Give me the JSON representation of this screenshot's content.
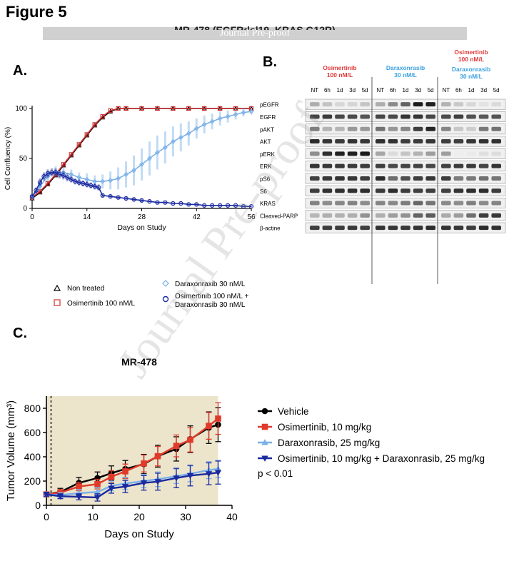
{
  "figure": {
    "title": "Figure 5",
    "banner_title": "MR-478 (EGFRdel19, KRAS G12R)",
    "banner": "Journal Pre-proof",
    "watermark": "Journal Pre-proof"
  },
  "panel_a": {
    "label": "A.",
    "legend": [
      "Non treated",
      "Osimertinib 100 nM/L",
      "Daraxonraxib 30 nM/L",
      "Osimertinib 100 nM/L +\nDaraxonrasib 30 nM/L"
    ]
  },
  "panel_b": {
    "label": "B.",
    "groups": [
      {
        "name": "Osimertinib\n100 nM/L",
        "color": "#e03a3a"
      },
      {
        "name": "Daraxonrasib\n30 nM/L",
        "color": "#3aa0e0"
      },
      {
        "name_top": "Osimertinib\n100 nM/L",
        "name_bottom": "Daraxonrasib\n30 nM/L",
        "color_top": "#e03a3a",
        "color_bottom": "#3aa0e0"
      }
    ],
    "lanes": [
      "NT",
      "6h",
      "1d",
      "3d",
      "5d",
      "NT",
      "6h",
      "1d",
      "3d",
      "5d",
      "NT",
      "6h",
      "1d",
      "3d",
      "5d"
    ],
    "rows": [
      "pEGFR",
      "EGFR",
      "pAKT",
      "AKT",
      "pERK",
      "ERK",
      "pS6",
      "S6",
      "KRAS",
      "Cleaved-PARP",
      "β-actine"
    ]
  },
  "panel_c": {
    "label": "C.",
    "legend_pvalue": "p < 0.01"
  },
  "chart_data": [
    {
      "type": "line",
      "id": "panel-a-confluency",
      "xlabel": "Days on Study",
      "ylabel": "Cell Confluency (%)",
      "xlim": [
        0,
        56
      ],
      "ylim": [
        0,
        100
      ],
      "xticks": [
        0,
        14,
        28,
        42,
        56
      ],
      "yticks": [
        0,
        50,
        100
      ],
      "series": [
        {
          "name": "Non treated",
          "color": "#000000",
          "marker": "triangle",
          "x": [
            0,
            2,
            4,
            6,
            8,
            10,
            12,
            14,
            16,
            18,
            20,
            22,
            24,
            28,
            32,
            36,
            40,
            44,
            48,
            52,
            56
          ],
          "y": [
            10,
            16,
            24,
            33,
            43,
            53,
            63,
            73,
            83,
            91,
            97,
            100,
            100,
            100,
            100,
            100,
            100,
            100,
            100,
            100,
            100
          ]
        },
        {
          "name": "Osimertinib 100 nM/L",
          "color": "#d03030",
          "marker": "square",
          "x": [
            0,
            2,
            4,
            6,
            8,
            10,
            12,
            14,
            16,
            18,
            20,
            22,
            24,
            28,
            32,
            36,
            40,
            44,
            48,
            52,
            56
          ],
          "y": [
            11,
            17,
            25,
            34,
            44,
            54,
            64,
            74,
            84,
            92,
            98,
            100,
            100,
            100,
            100,
            100,
            100,
            100,
            100,
            100,
            100
          ]
        },
        {
          "name": "Daraxonraxib 30 nM/L",
          "color": "#7ab0e8",
          "marker": "diamond",
          "x": [
            0,
            2,
            4,
            6,
            8,
            10,
            12,
            14,
            16,
            18,
            20,
            22,
            24,
            26,
            28,
            30,
            32,
            34,
            36,
            38,
            40,
            42,
            44,
            46,
            48,
            50,
            52,
            54,
            56
          ],
          "y": [
            11,
            22,
            32,
            37,
            36,
            34,
            31,
            29,
            27,
            27,
            28,
            30,
            34,
            38,
            44,
            50,
            56,
            61,
            67,
            71,
            75,
            80,
            84,
            87,
            90,
            92,
            94,
            96,
            97
          ],
          "err": [
            2,
            4,
            5,
            5,
            5,
            5,
            5,
            6,
            6,
            7,
            9,
            11,
            13,
            15,
            16,
            17,
            17,
            16,
            15,
            14,
            12,
            10,
            9,
            8,
            7,
            6,
            5,
            4,
            3
          ]
        },
        {
          "name": "Osimertinib 100 nM/L + Daraxonrasib 30 nM/L",
          "color": "#1a2aa0",
          "marker": "circle",
          "x": [
            0,
            1,
            2,
            3,
            4,
            5,
            6,
            7,
            8,
            9,
            10,
            11,
            12,
            13,
            14,
            15,
            16,
            17,
            18,
            20,
            22,
            24,
            26,
            28,
            30,
            32,
            34,
            36,
            38,
            40,
            42,
            44,
            46,
            48,
            50,
            52,
            54,
            56
          ],
          "y": [
            12,
            18,
            26,
            32,
            35,
            36,
            36,
            34,
            33,
            31,
            29,
            27,
            26,
            25,
            24,
            23,
            22,
            21,
            13,
            12,
            11,
            10,
            9,
            8,
            7,
            6,
            6,
            5,
            5,
            4,
            4,
            3,
            3,
            3,
            3,
            3,
            2,
            2
          ],
          "err": [
            2,
            3,
            4,
            4,
            4,
            4,
            4,
            4,
            4,
            4,
            3,
            3,
            3,
            3,
            3,
            3,
            3,
            3,
            2,
            2,
            2,
            2,
            2,
            2,
            1,
            1,
            1,
            1,
            1,
            1,
            1,
            1,
            1,
            1,
            1,
            1,
            1,
            1
          ]
        }
      ]
    },
    {
      "type": "line",
      "id": "panel-c-tumor-volume",
      "title": "MR-478",
      "xlabel": "Days on Study",
      "ylabel": "Tumor Volume (mm³)",
      "xlim": [
        0,
        40
      ],
      "ylim": [
        0,
        900
      ],
      "xticks": [
        0,
        10,
        20,
        30,
        40
      ],
      "yticks": [
        0,
        200,
        400,
        600,
        800
      ],
      "shaded_region": [
        0,
        37
      ],
      "dashed_vline": 1,
      "series": [
        {
          "name": "Vehicle",
          "color": "#000000",
          "marker": "circle",
          "x": [
            0,
            3,
            7,
            11,
            14,
            17,
            21,
            24,
            28,
            31,
            35,
            37
          ],
          "y": [
            90,
            110,
            185,
            225,
            265,
            300,
            340,
            405,
            465,
            545,
            640,
            665
          ],
          "err": [
            15,
            30,
            45,
            50,
            60,
            70,
            80,
            90,
            100,
            110,
            130,
            140
          ]
        },
        {
          "name": "Osimertinib, 10 mg/kg",
          "color": "#e03a2a",
          "marker": "square",
          "x": [
            0,
            3,
            7,
            11,
            14,
            17,
            21,
            24,
            28,
            31,
            35,
            37
          ],
          "y": [
            90,
            105,
            155,
            175,
            235,
            280,
            345,
            405,
            490,
            540,
            655,
            715
          ],
          "err": [
            15,
            25,
            35,
            40,
            50,
            60,
            70,
            80,
            90,
            100,
            110,
            130
          ]
        },
        {
          "name": "Daraxonrasib, 25 mg/kg",
          "color": "#7ab0e8",
          "marker": "triangle-up",
          "x": [
            0,
            3,
            7,
            11,
            14,
            17,
            21,
            24,
            28,
            31,
            35,
            37
          ],
          "y": [
            90,
            85,
            100,
            110,
            160,
            180,
            200,
            215,
            240,
            260,
            290,
            300
          ],
          "err": [
            15,
            20,
            30,
            35,
            40,
            50,
            55,
            60,
            60,
            65,
            70,
            70
          ]
        },
        {
          "name": "Osimertinib, 10 mg/kg + Daraxonrasib, 25 mg/kg",
          "color": "#1a2aa0",
          "marker": "triangle-down",
          "x": [
            0,
            3,
            7,
            11,
            14,
            17,
            21,
            24,
            28,
            31,
            35,
            37
          ],
          "y": [
            90,
            75,
            70,
            65,
            140,
            155,
            185,
            195,
            225,
            245,
            260,
            270
          ],
          "err": [
            15,
            20,
            25,
            30,
            40,
            50,
            60,
            70,
            80,
            85,
            90,
            95
          ]
        }
      ]
    }
  ]
}
